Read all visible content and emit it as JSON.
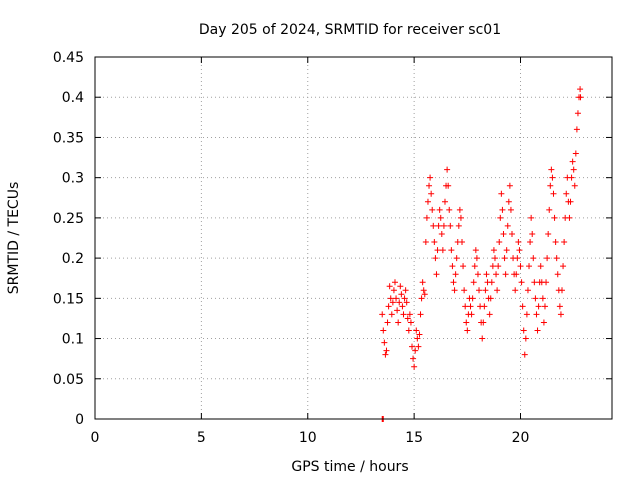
{
  "chart_data": {
    "type": "scatter",
    "title": "Day 205 of 2024, SRMTID for receiver sc01",
    "xlabel": "GPS time / hours",
    "ylabel": "SRMTID / TECUs",
    "xlim": [
      0,
      24.3
    ],
    "ylim": [
      0,
      0.45
    ],
    "xticks": [
      0,
      5,
      10,
      15,
      20
    ],
    "xtick_labels": [
      "0",
      "5",
      "10",
      "15",
      "20"
    ],
    "yticks": [
      0,
      0.05,
      0.1,
      0.15,
      0.2,
      0.25,
      0.3,
      0.35,
      0.4,
      0.45
    ],
    "ytick_labels": [
      "0",
      "0.05",
      "0.1",
      "0.15",
      "0.2",
      "0.25",
      "0.3",
      "0.35",
      "0.4",
      "0.45"
    ],
    "grid": true,
    "marker": "plus",
    "color": "#ff0000",
    "series": [
      {
        "name": "sc01",
        "points": [
          [
            13.5,
            0.0
          ],
          [
            13.52,
            0.0
          ],
          [
            13.55,
            0.0
          ],
          [
            13.5,
            0.13
          ],
          [
            13.55,
            0.11
          ],
          [
            13.6,
            0.095
          ],
          [
            13.65,
            0.08
          ],
          [
            13.7,
            0.085
          ],
          [
            13.75,
            0.12
          ],
          [
            13.8,
            0.14
          ],
          [
            13.85,
            0.165
          ],
          [
            13.9,
            0.15
          ],
          [
            13.95,
            0.13
          ],
          [
            14.0,
            0.145
          ],
          [
            14.05,
            0.16
          ],
          [
            14.1,
            0.17
          ],
          [
            14.15,
            0.15
          ],
          [
            14.2,
            0.135
          ],
          [
            14.25,
            0.12
          ],
          [
            14.3,
            0.145
          ],
          [
            14.35,
            0.165
          ],
          [
            14.4,
            0.155
          ],
          [
            14.45,
            0.14
          ],
          [
            14.5,
            0.13
          ],
          [
            14.55,
            0.15
          ],
          [
            14.6,
            0.16
          ],
          [
            14.65,
            0.145
          ],
          [
            14.7,
            0.125
          ],
          [
            14.75,
            0.11
          ],
          [
            14.8,
            0.13
          ],
          [
            14.85,
            0.12
          ],
          [
            14.9,
            0.09
          ],
          [
            14.95,
            0.075
          ],
          [
            15.0,
            0.065
          ],
          [
            15.05,
            0.085
          ],
          [
            15.1,
            0.11
          ],
          [
            15.15,
            0.1
          ],
          [
            15.2,
            0.09
          ],
          [
            15.25,
            0.105
          ],
          [
            15.3,
            0.13
          ],
          [
            15.35,
            0.15
          ],
          [
            15.4,
            0.17
          ],
          [
            15.45,
            0.16
          ],
          [
            15.5,
            0.155
          ],
          [
            15.55,
            0.22
          ],
          [
            15.6,
            0.25
          ],
          [
            15.65,
            0.27
          ],
          [
            15.7,
            0.29
          ],
          [
            15.75,
            0.3
          ],
          [
            15.8,
            0.28
          ],
          [
            15.85,
            0.26
          ],
          [
            15.9,
            0.24
          ],
          [
            15.95,
            0.22
          ],
          [
            16.0,
            0.2
          ],
          [
            16.05,
            0.18
          ],
          [
            16.1,
            0.21
          ],
          [
            16.15,
            0.24
          ],
          [
            16.2,
            0.26
          ],
          [
            16.25,
            0.25
          ],
          [
            16.3,
            0.23
          ],
          [
            16.35,
            0.21
          ],
          [
            16.4,
            0.24
          ],
          [
            16.45,
            0.27
          ],
          [
            16.5,
            0.29
          ],
          [
            16.55,
            0.31
          ],
          [
            16.6,
            0.29
          ],
          [
            16.65,
            0.26
          ],
          [
            16.7,
            0.24
          ],
          [
            16.75,
            0.21
          ],
          [
            16.8,
            0.19
          ],
          [
            16.85,
            0.17
          ],
          [
            16.9,
            0.16
          ],
          [
            16.95,
            0.18
          ],
          [
            17.0,
            0.2
          ],
          [
            17.05,
            0.22
          ],
          [
            17.1,
            0.24
          ],
          [
            17.15,
            0.26
          ],
          [
            17.2,
            0.25
          ],
          [
            17.25,
            0.22
          ],
          [
            17.3,
            0.19
          ],
          [
            17.35,
            0.16
          ],
          [
            17.4,
            0.14
          ],
          [
            17.45,
            0.12
          ],
          [
            17.5,
            0.11
          ],
          [
            17.55,
            0.13
          ],
          [
            17.6,
            0.15
          ],
          [
            17.65,
            0.14
          ],
          [
            17.7,
            0.13
          ],
          [
            17.75,
            0.15
          ],
          [
            17.8,
            0.17
          ],
          [
            17.85,
            0.19
          ],
          [
            17.9,
            0.21
          ],
          [
            17.95,
            0.2
          ],
          [
            18.0,
            0.18
          ],
          [
            18.05,
            0.16
          ],
          [
            18.1,
            0.14
          ],
          [
            18.15,
            0.12
          ],
          [
            18.2,
            0.1
          ],
          [
            18.25,
            0.12
          ],
          [
            18.3,
            0.14
          ],
          [
            18.35,
            0.16
          ],
          [
            18.4,
            0.18
          ],
          [
            18.45,
            0.17
          ],
          [
            18.5,
            0.15
          ],
          [
            18.55,
            0.13
          ],
          [
            18.6,
            0.15
          ],
          [
            18.65,
            0.17
          ],
          [
            18.7,
            0.19
          ],
          [
            18.75,
            0.21
          ],
          [
            18.8,
            0.2
          ],
          [
            18.85,
            0.18
          ],
          [
            18.9,
            0.16
          ],
          [
            18.95,
            0.19
          ],
          [
            19.0,
            0.22
          ],
          [
            19.05,
            0.25
          ],
          [
            19.1,
            0.28
          ],
          [
            19.15,
            0.26
          ],
          [
            19.2,
            0.23
          ],
          [
            19.25,
            0.2
          ],
          [
            19.3,
            0.18
          ],
          [
            19.35,
            0.21
          ],
          [
            19.4,
            0.24
          ],
          [
            19.45,
            0.27
          ],
          [
            19.5,
            0.29
          ],
          [
            19.55,
            0.26
          ],
          [
            19.6,
            0.23
          ],
          [
            19.65,
            0.2
          ],
          [
            19.7,
            0.18
          ],
          [
            19.75,
            0.16
          ],
          [
            19.8,
            0.18
          ],
          [
            19.85,
            0.2
          ],
          [
            19.9,
            0.22
          ],
          [
            19.95,
            0.21
          ],
          [
            20.0,
            0.19
          ],
          [
            20.05,
            0.17
          ],
          [
            20.1,
            0.14
          ],
          [
            20.15,
            0.11
          ],
          [
            20.2,
            0.08
          ],
          [
            20.25,
            0.1
          ],
          [
            20.3,
            0.13
          ],
          [
            20.35,
            0.16
          ],
          [
            20.4,
            0.19
          ],
          [
            20.45,
            0.22
          ],
          [
            20.5,
            0.25
          ],
          [
            20.55,
            0.23
          ],
          [
            20.6,
            0.2
          ],
          [
            20.65,
            0.17
          ],
          [
            20.7,
            0.15
          ],
          [
            20.75,
            0.13
          ],
          [
            20.8,
            0.11
          ],
          [
            20.85,
            0.14
          ],
          [
            20.9,
            0.17
          ],
          [
            20.95,
            0.19
          ],
          [
            21.0,
            0.17
          ],
          [
            21.05,
            0.15
          ],
          [
            21.1,
            0.12
          ],
          [
            21.15,
            0.14
          ],
          [
            21.2,
            0.17
          ],
          [
            21.25,
            0.2
          ],
          [
            21.3,
            0.23
          ],
          [
            21.35,
            0.26
          ],
          [
            21.4,
            0.29
          ],
          [
            21.45,
            0.31
          ],
          [
            21.5,
            0.3
          ],
          [
            21.55,
            0.28
          ],
          [
            21.6,
            0.25
          ],
          [
            21.65,
            0.22
          ],
          [
            21.7,
            0.2
          ],
          [
            21.75,
            0.18
          ],
          [
            21.8,
            0.16
          ],
          [
            21.85,
            0.14
          ],
          [
            21.9,
            0.13
          ],
          [
            21.95,
            0.16
          ],
          [
            22.0,
            0.19
          ],
          [
            22.05,
            0.22
          ],
          [
            22.1,
            0.25
          ],
          [
            22.15,
            0.28
          ],
          [
            22.2,
            0.3
          ],
          [
            22.25,
            0.27
          ],
          [
            22.3,
            0.25
          ],
          [
            22.35,
            0.27
          ],
          [
            22.4,
            0.3
          ],
          [
            22.45,
            0.32
          ],
          [
            22.5,
            0.31
          ],
          [
            22.55,
            0.29
          ],
          [
            22.6,
            0.33
          ],
          [
            22.65,
            0.36
          ],
          [
            22.7,
            0.38
          ],
          [
            22.75,
            0.4
          ],
          [
            22.8,
            0.41
          ],
          [
            22.82,
            0.4
          ]
        ]
      }
    ]
  }
}
